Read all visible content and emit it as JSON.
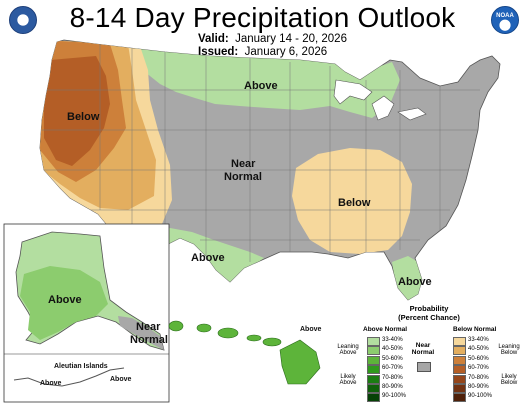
{
  "header": {
    "title": "8-14 Day Precipitation Outlook",
    "valid_label": "Valid:",
    "valid_value": "January 14 - 20, 2026",
    "issued_label": "Issued:",
    "issued_value": "January 6, 2026",
    "left_logo_icon": "doc-seal-icon",
    "right_logo_icon": "noaa-logo-icon",
    "right_logo_text": "NOAA"
  },
  "map": {
    "labels": {
      "west_below": "Below",
      "north_above": "Above",
      "near_normal_line1": "Near",
      "near_normal_line2": "Normal",
      "south_above": "Above",
      "southeast_below": "Below",
      "florida_above": "Above"
    },
    "alaska": {
      "above": "Above",
      "near_normal_line1": "Near",
      "near_normal_line2": "Normal",
      "aleutian_title": "Aleutian Islands",
      "aleutian_above_1": "Above",
      "aleutian_above_2": "Above"
    },
    "hawaii": {
      "above": "Above"
    }
  },
  "legend": {
    "title_line1": "Probability",
    "title_line2": "(Percent Chance)",
    "above_header": "Above Normal",
    "below_header": "Below Normal",
    "near_normal_line1": "Near",
    "near_normal_line2": "Normal",
    "leaning_above_line1": "Leaning",
    "leaning_above_line2": "Above",
    "likely_above_line1": "Likely",
    "likely_above_line2": "Above",
    "leaning_below_line1": "Leaning",
    "leaning_below_line2": "Below",
    "likely_below_line1": "Likely",
    "likely_below_line2": "Below",
    "near_normal_color": "#a6a6a6",
    "above": [
      {
        "range": "33-40%",
        "color": "#b3dea0"
      },
      {
        "range": "40-50%",
        "color": "#8ccc6e"
      },
      {
        "range": "50-60%",
        "color": "#5db43a"
      },
      {
        "range": "60-70%",
        "color": "#2f9a1c"
      },
      {
        "range": "70-80%",
        "color": "#1b7d12"
      },
      {
        "range": "80-90%",
        "color": "#0f600a"
      },
      {
        "range": "90-100%",
        "color": "#064206"
      }
    ],
    "below": [
      {
        "range": "33-40%",
        "color": "#f6d89c"
      },
      {
        "range": "40-50%",
        "color": "#e3ae5f"
      },
      {
        "range": "50-60%",
        "color": "#cd803a"
      },
      {
        "range": "60-70%",
        "color": "#b45e26"
      },
      {
        "range": "70-80%",
        "color": "#95461b"
      },
      {
        "range": "80-90%",
        "color": "#723212"
      },
      {
        "range": "90-100%",
        "color": "#4e2009"
      }
    ]
  }
}
